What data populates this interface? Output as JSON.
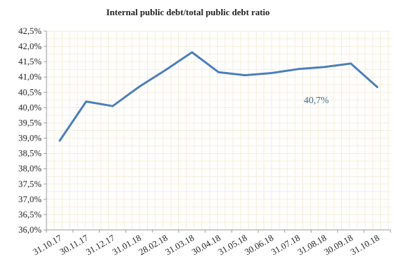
{
  "chart_data": {
    "type": "line",
    "title": "Internal public debt/total public debt ratio",
    "xlabel": "",
    "ylabel": "",
    "x": [
      "31.10.17",
      "30.11.17",
      "31.12.17",
      "31.01.18",
      "28.02.18",
      "31.03.18",
      "30.04.18",
      "31.05.18",
      "30.06.18",
      "31.07.18",
      "31.08.18",
      "30.09.18",
      "31.10.18"
    ],
    "series": [
      {
        "values": [
          38.92,
          40.2,
          40.05,
          40.68,
          41.23,
          41.81,
          41.16,
          41.06,
          41.13,
          41.26,
          41.33,
          41.44,
          40.67
        ]
      }
    ],
    "ylim": [
      36.0,
      42.5
    ],
    "y_ticks": [
      "36,0%",
      "36,5%",
      "37,0%",
      "37,5%",
      "38,0%",
      "38,5%",
      "39,0%",
      "39,5%",
      "40,0%",
      "40,5%",
      "41,0%",
      "41,5%",
      "42,0%",
      "42,5%"
    ],
    "annotation": "40,7%",
    "grid": true,
    "colors": {
      "line": "#4a7ebb",
      "grid": "#f6ecd8",
      "axis": "#999999",
      "annotation": "#3d6e8f"
    }
  }
}
